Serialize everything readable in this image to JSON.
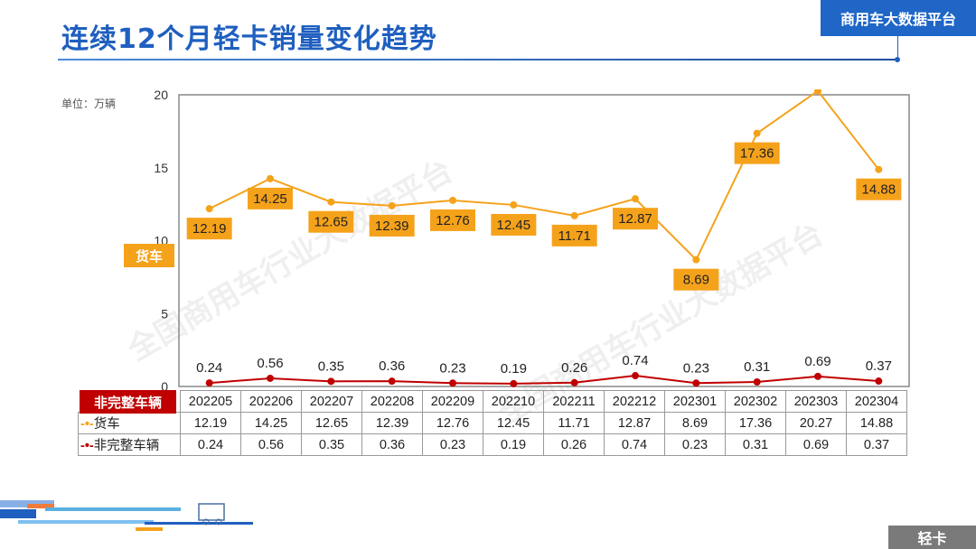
{
  "header": {
    "title": "连续12个月轻卡销量变化趋势",
    "brand": "商用车大数据平台",
    "footer_tag": "轻卡"
  },
  "watermark": "全国商用车行业大数据平台",
  "chart_data": {
    "type": "line",
    "unit_label": "单位：万辆",
    "categories": [
      "202205",
      "202206",
      "202207",
      "202208",
      "202209",
      "202210",
      "202211",
      "202212",
      "202301",
      "202302",
      "202303",
      "202304"
    ],
    "ylim": [
      0,
      20
    ],
    "yticks": [
      "0",
      "5",
      "10",
      "15",
      "20"
    ],
    "series": [
      {
        "name": "货车",
        "color": "#f5a21b",
        "values": [
          12.19,
          14.25,
          12.65,
          12.39,
          12.76,
          12.45,
          11.71,
          12.87,
          8.69,
          17.36,
          20.27,
          14.88
        ],
        "labels": [
          "12.19",
          "14.25",
          "12.65",
          "12.39",
          "12.76",
          "12.45",
          "11.71",
          "12.87",
          "8.69",
          "17.36",
          "20.27",
          "14.88"
        ]
      },
      {
        "name": "非完整车辆",
        "color": "#c00000",
        "values": [
          0.24,
          0.56,
          0.35,
          0.36,
          0.23,
          0.19,
          0.26,
          0.74,
          0.23,
          0.31,
          0.69,
          0.37
        ],
        "labels": [
          "0.24",
          "0.56",
          "0.35",
          "0.36",
          "0.23",
          "0.19",
          "0.26",
          "0.74",
          "0.23",
          "0.31",
          "0.69",
          "0.37"
        ]
      }
    ]
  }
}
